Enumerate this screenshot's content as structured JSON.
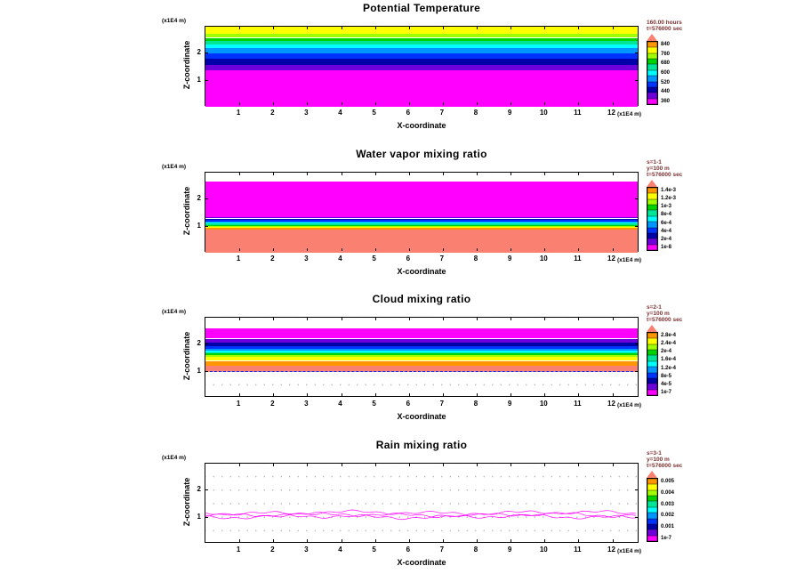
{
  "figure": {
    "background": "#ffffff",
    "axis_color": "#000000",
    "annotation_color": "#7c3030"
  },
  "chart_data": [
    {
      "type": "heatmap",
      "title": "Potential Temperature",
      "xlabel": "X-coordinate",
      "ylabel": "Z-coordinate",
      "x_units": "(x1E4 m)",
      "y_units": "(x1E4 m)",
      "x_ticks": [
        1,
        2,
        3,
        4,
        5,
        6,
        7,
        8,
        9,
        10,
        11,
        12
      ],
      "y_ticks": [
        1,
        2
      ],
      "xlim": [
        0,
        12.8
      ],
      "ylim": [
        0,
        2.95
      ],
      "grid": "dotted-minor-ticks",
      "annotations": [
        "160.00 hours",
        "t=576000 sec"
      ],
      "bands": [
        {
          "from": 2.68,
          "to": 2.95,
          "color": "#ffff00"
        },
        {
          "from": 2.54,
          "to": 2.68,
          "color": "#a0ff00"
        },
        {
          "from": 2.42,
          "to": 2.54,
          "color": "#00d200"
        },
        {
          "from": 2.3,
          "to": 2.42,
          "color": "#00e696"
        },
        {
          "from": 2.15,
          "to": 2.3,
          "color": "#00ffff"
        },
        {
          "from": 1.98,
          "to": 2.15,
          "color": "#0096ff"
        },
        {
          "from": 1.77,
          "to": 1.98,
          "color": "#0032ff"
        },
        {
          "from": 1.53,
          "to": 1.77,
          "color": "#0000aa"
        },
        {
          "from": 1.33,
          "to": 1.53,
          "color": "#6e00dc"
        },
        {
          "from": 0.0,
          "to": 1.33,
          "color": "#ff00ff"
        }
      ],
      "legend": {
        "arrow_color": "#fa8072",
        "cell_colors": [
          "#ff9600",
          "#ffff00",
          "#a0ff00",
          "#00d200",
          "#00e696",
          "#00ffff",
          "#0096ff",
          "#0032ff",
          "#0000aa",
          "#6e00dc",
          "#ff00ff"
        ],
        "labels": [
          "840",
          "760",
          "680",
          "600",
          "520",
          "440",
          "360"
        ]
      }
    },
    {
      "type": "heatmap",
      "title": "Water vapor mixing ratio",
      "xlabel": "X-coordinate",
      "ylabel": "Z-coordinate",
      "x_units": "(x1E4 m)",
      "y_units": "(x1E4 m)",
      "x_ticks": [
        1,
        2,
        3,
        4,
        5,
        6,
        7,
        8,
        9,
        10,
        11,
        12
      ],
      "y_ticks": [
        1,
        2
      ],
      "xlim": [
        0,
        12.8
      ],
      "ylim": [
        0,
        2.95
      ],
      "grid": "dotted-minor-ticks",
      "annotations": [
        "s=1-1",
        "y=100 m",
        "t=576000 sec"
      ],
      "bands": [
        {
          "from": 1.3,
          "to": 2.63,
          "color": "#ff00ff"
        },
        {
          "from": 1.26,
          "to": 1.3,
          "color": "#6e00dc"
        },
        {
          "from": 1.2,
          "to": 1.26,
          "color": "#0000aa"
        },
        {
          "from": 1.15,
          "to": 1.2,
          "color": "#0032ff"
        },
        {
          "from": 1.11,
          "to": 1.15,
          "color": "#0096ff"
        },
        {
          "from": 1.07,
          "to": 1.11,
          "color": "#00ffff"
        },
        {
          "from": 1.03,
          "to": 1.07,
          "color": "#00e696"
        },
        {
          "from": 0.99,
          "to": 1.03,
          "color": "#00d200"
        },
        {
          "from": 0.95,
          "to": 0.99,
          "color": "#a0ff00"
        },
        {
          "from": 0.91,
          "to": 0.95,
          "color": "#ffff00"
        },
        {
          "from": 0.86,
          "to": 0.91,
          "color": "#ff9600"
        },
        {
          "from": 0.0,
          "to": 0.86,
          "color": "#fa8072"
        }
      ],
      "legend": {
        "arrow_color": "#fa8072",
        "cell_colors": [
          "#ff9600",
          "#ffff00",
          "#a0ff00",
          "#00d200",
          "#00e696",
          "#00ffff",
          "#0096ff",
          "#0032ff",
          "#0000aa",
          "#6e00dc",
          "#ff00ff"
        ],
        "labels": [
          "1.4e-3",
          "1.2e-3",
          "1e-3",
          "8e-4",
          "6e-4",
          "4e-4",
          "2e-4",
          "1e-8"
        ]
      }
    },
    {
      "type": "heatmap",
      "title": "Cloud mixing ratio",
      "xlabel": "X-coordinate",
      "ylabel": "Z-coordinate",
      "x_units": "(x1E4 m)",
      "y_units": "(x1E4 m)",
      "x_ticks": [
        1,
        2,
        3,
        4,
        5,
        6,
        7,
        8,
        9,
        10,
        11,
        12
      ],
      "y_ticks": [
        1,
        2
      ],
      "xlim": [
        0,
        12.8
      ],
      "ylim": [
        0,
        2.95
      ],
      "grid": "dotted-minor-ticks",
      "annotations": [
        "s=2-1",
        "y=100 m",
        "t=576000 sec"
      ],
      "bands": [
        {
          "from": 2.18,
          "to": 2.57,
          "color": "#ff00ff"
        },
        {
          "from": 2.04,
          "to": 2.18,
          "color": "#6e00dc"
        },
        {
          "from": 1.89,
          "to": 2.04,
          "color": "#0000aa"
        },
        {
          "from": 1.8,
          "to": 1.89,
          "color": "#0032ff"
        },
        {
          "from": 1.74,
          "to": 1.8,
          "color": "#0096ff"
        },
        {
          "from": 1.68,
          "to": 1.74,
          "color": "#00ffff"
        },
        {
          "from": 1.63,
          "to": 1.68,
          "color": "#00e696"
        },
        {
          "from": 1.58,
          "to": 1.63,
          "color": "#00d200"
        },
        {
          "from": 1.52,
          "to": 1.58,
          "color": "#a0ff00"
        },
        {
          "from": 1.36,
          "to": 1.52,
          "color": "#ffff00"
        },
        {
          "from": 1.18,
          "to": 1.36,
          "color": "#ff9600"
        },
        {
          "from": 0.94,
          "to": 1.18,
          "color": "#fa8072",
          "bottom_dash": "#0032ff"
        }
      ],
      "legend": {
        "arrow_color": "#fa8072",
        "cell_colors": [
          "#ff9600",
          "#ffff00",
          "#a0ff00",
          "#00d200",
          "#00e696",
          "#00ffff",
          "#0096ff",
          "#0032ff",
          "#0000aa",
          "#6e00dc",
          "#ff00ff"
        ],
        "labels": [
          "2.8e-4",
          "2.4e-4",
          "2e-4",
          "1.6e-4",
          "1.2e-4",
          "8e-5",
          "4e-5",
          "1e-7"
        ]
      }
    },
    {
      "type": "heatmap",
      "title": "Rain mixing ratio",
      "xlabel": "X-coordinate",
      "ylabel": "Z-coordinate",
      "x_units": "(x1E4 m)",
      "y_units": "(x1E4 m)",
      "x_ticks": [
        1,
        2,
        3,
        4,
        5,
        6,
        7,
        8,
        9,
        10,
        11,
        12
      ],
      "y_ticks": [
        1,
        2
      ],
      "xlim": [
        0,
        12.8
      ],
      "ylim": [
        0,
        2.95
      ],
      "grid": "dotted-minor-ticks",
      "annotations": [
        "s=3-1",
        "y=100 m",
        "t=576000 sec"
      ],
      "bands": [],
      "contour_lines": [
        {
          "z": 1.1,
          "color": "#ff00ff"
        },
        {
          "z": 1.02,
          "color": "#ff00ff"
        },
        {
          "z": 0.95,
          "color": "#ff00ff"
        }
      ],
      "legend": {
        "arrow_color": "#fa8072",
        "cell_colors": [
          "#ff9600",
          "#ffff00",
          "#a0ff00",
          "#00d200",
          "#00e696",
          "#00ffff",
          "#0096ff",
          "#0032ff",
          "#0000aa",
          "#6e00dc",
          "#ff00ff"
        ],
        "labels": [
          "0.005",
          "0.004",
          "0.003",
          "0.002",
          "0.001",
          "1e-7"
        ]
      }
    }
  ]
}
